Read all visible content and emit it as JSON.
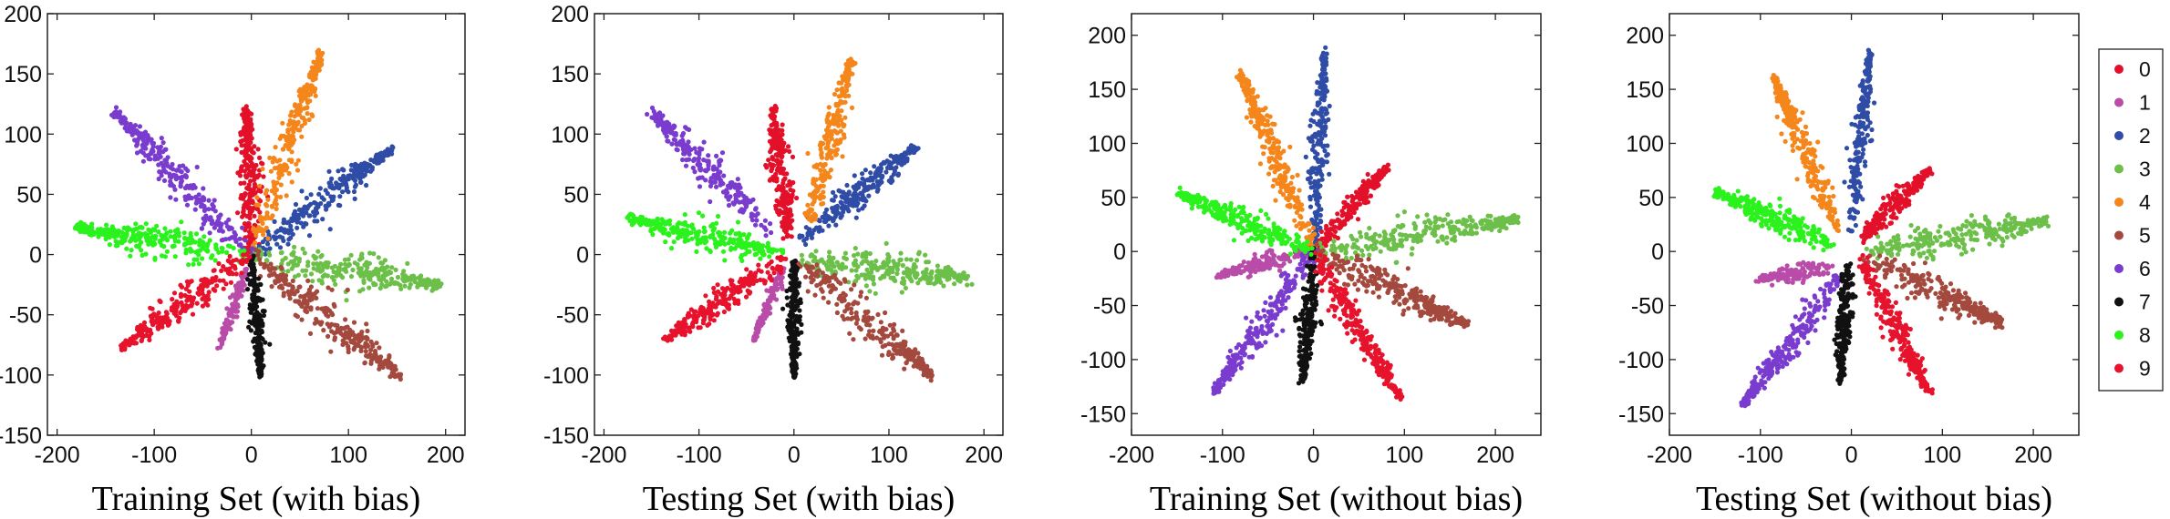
{
  "chart_data": [
    {
      "type": "scatter",
      "title": "Training Set (with bias)",
      "xlim": [
        -210,
        220
      ],
      "ylim": [
        -150,
        200
      ],
      "xticks": [
        -200,
        -100,
        0,
        100,
        200
      ],
      "yticks": [
        -150,
        -100,
        -50,
        0,
        50,
        100,
        150,
        200
      ],
      "grid": false,
      "clusters": [
        {
          "label": "0",
          "start": [
            0,
            0
          ],
          "end": [
            -5,
            120
          ],
          "width": 14,
          "n": 240
        },
        {
          "label": "1",
          "start": [
            0,
            0
          ],
          "end": [
            -32,
            -75
          ],
          "width": 7,
          "n": 140
        },
        {
          "label": "2",
          "start": [
            0,
            0
          ],
          "end": [
            145,
            88
          ],
          "width": 14,
          "n": 260
        },
        {
          "label": "3",
          "start": [
            0,
            0
          ],
          "end": [
            195,
            -25
          ],
          "width": 18,
          "n": 280
        },
        {
          "label": "4",
          "start": [
            0,
            0
          ],
          "end": [
            72,
            168
          ],
          "width": 15,
          "n": 260
        },
        {
          "label": "5",
          "start": [
            0,
            0
          ],
          "end": [
            155,
            -102
          ],
          "width": 18,
          "n": 270
        },
        {
          "label": "6",
          "start": [
            0,
            0
          ],
          "end": [
            -140,
            118
          ],
          "width": 16,
          "n": 260
        },
        {
          "label": "7",
          "start": [
            0,
            0
          ],
          "end": [
            10,
            -100
          ],
          "width": 9,
          "n": 220
        },
        {
          "label": "8",
          "start": [
            0,
            0
          ],
          "end": [
            -180,
            22
          ],
          "width": 15,
          "n": 280
        },
        {
          "label": "9",
          "start": [
            0,
            0
          ],
          "end": [
            -135,
            -78
          ],
          "width": 15,
          "n": 260
        }
      ]
    },
    {
      "type": "scatter",
      "title": "Testing Set (with bias)",
      "xlim": [
        -210,
        220
      ],
      "ylim": [
        -150,
        200
      ],
      "xticks": [
        -200,
        -100,
        0,
        100,
        200
      ],
      "yticks": [
        -150,
        -100,
        -50,
        0,
        50,
        100,
        150,
        200
      ],
      "grid": false,
      "clusters": [
        {
          "label": "0",
          "start": [
            -5,
            10
          ],
          "end": [
            -22,
            122
          ],
          "width": 14,
          "n": 230
        },
        {
          "label": "1",
          "start": [
            -10,
            -10
          ],
          "end": [
            -42,
            -70
          ],
          "width": 7,
          "n": 130
        },
        {
          "label": "2",
          "start": [
            5,
            10
          ],
          "end": [
            130,
            90
          ],
          "width": 15,
          "n": 250
        },
        {
          "label": "3",
          "start": [
            5,
            -5
          ],
          "end": [
            185,
            -20
          ],
          "width": 18,
          "n": 270
        },
        {
          "label": "4",
          "start": [
            15,
            25
          ],
          "end": [
            60,
            162
          ],
          "width": 14,
          "n": 240
        },
        {
          "label": "5",
          "start": [
            5,
            -5
          ],
          "end": [
            145,
            -100
          ],
          "width": 18,
          "n": 260
        },
        {
          "label": "6",
          "start": [
            -20,
            15
          ],
          "end": [
            -150,
            118
          ],
          "width": 16,
          "n": 250
        },
        {
          "label": "7",
          "start": [
            0,
            -5
          ],
          "end": [
            0,
            -100
          ],
          "width": 9,
          "n": 220
        },
        {
          "label": "8",
          "start": [
            -10,
            0
          ],
          "end": [
            -175,
            30
          ],
          "width": 15,
          "n": 270
        },
        {
          "label": "9",
          "start": [
            -10,
            -5
          ],
          "end": [
            -135,
            -70
          ],
          "width": 15,
          "n": 250
        }
      ]
    },
    {
      "type": "scatter",
      "title": "Training Set (without bias)",
      "xlim": [
        -200,
        250
      ],
      "ylim": [
        -170,
        220
      ],
      "xticks": [
        -200,
        -100,
        0,
        100,
        200
      ],
      "yticks": [
        -150,
        -100,
        -50,
        0,
        50,
        100,
        150,
        200
      ],
      "grid": false,
      "clusters": [
        {
          "label": "0",
          "start": [
            0,
            0
          ],
          "end": [
            80,
            78
          ],
          "width": 13,
          "n": 220
        },
        {
          "label": "1",
          "start": [
            0,
            0
          ],
          "end": [
            -105,
            -22
          ],
          "width": 10,
          "n": 170
        },
        {
          "label": "2",
          "start": [
            0,
            0
          ],
          "end": [
            12,
            185
          ],
          "width": 11,
          "n": 240
        },
        {
          "label": "3",
          "start": [
            0,
            0
          ],
          "end": [
            225,
            30
          ],
          "width": 18,
          "n": 290
        },
        {
          "label": "4",
          "start": [
            0,
            0
          ],
          "end": [
            -80,
            165
          ],
          "width": 16,
          "n": 270
        },
        {
          "label": "5",
          "start": [
            0,
            0
          ],
          "end": [
            170,
            -68
          ],
          "width": 17,
          "n": 270
        },
        {
          "label": "6",
          "start": [
            0,
            0
          ],
          "end": [
            -110,
            -130
          ],
          "width": 16,
          "n": 270
        },
        {
          "label": "7",
          "start": [
            0,
            0
          ],
          "end": [
            -12,
            -120
          ],
          "width": 11,
          "n": 240
        },
        {
          "label": "8",
          "start": [
            0,
            0
          ],
          "end": [
            -150,
            55
          ],
          "width": 14,
          "n": 260
        },
        {
          "label": "9",
          "start": [
            0,
            0
          ],
          "end": [
            95,
            -135
          ],
          "width": 15,
          "n": 260
        }
      ]
    },
    {
      "type": "scatter",
      "title": "Testing Set (without bias)",
      "xlim": [
        -200,
        250
      ],
      "ylim": [
        -170,
        220
      ],
      "xticks": [
        -200,
        -100,
        0,
        100,
        200
      ],
      "yticks": [
        -150,
        -100,
        -50,
        0,
        50,
        100,
        150,
        200
      ],
      "grid": false,
      "clusters": [
        {
          "label": "0",
          "start": [
            10,
            10
          ],
          "end": [
            85,
            75
          ],
          "width": 13,
          "n": 210
        },
        {
          "label": "1",
          "start": [
            -20,
            -15
          ],
          "end": [
            -100,
            -25
          ],
          "width": 10,
          "n": 160
        },
        {
          "label": "2",
          "start": [
            0,
            15
          ],
          "end": [
            20,
            185
          ],
          "width": 11,
          "n": 230
        },
        {
          "label": "3",
          "start": [
            15,
            0
          ],
          "end": [
            215,
            28
          ],
          "width": 18,
          "n": 280
        },
        {
          "label": "4",
          "start": [
            -15,
            20
          ],
          "end": [
            -85,
            162
          ],
          "width": 15,
          "n": 260
        },
        {
          "label": "5",
          "start": [
            10,
            -5
          ],
          "end": [
            165,
            -65
          ],
          "width": 17,
          "n": 260
        },
        {
          "label": "6",
          "start": [
            -10,
            -20
          ],
          "end": [
            -120,
            -142
          ],
          "width": 15,
          "n": 260
        },
        {
          "label": "7",
          "start": [
            -5,
            -10
          ],
          "end": [
            -12,
            -120
          ],
          "width": 11,
          "n": 230
        },
        {
          "label": "8",
          "start": [
            -15,
            5
          ],
          "end": [
            -150,
            55
          ],
          "width": 14,
          "n": 260
        },
        {
          "label": "9",
          "start": [
            10,
            -5
          ],
          "end": [
            85,
            -130
          ],
          "width": 15,
          "n": 250
        }
      ]
    }
  ],
  "legend": {
    "placement": "right",
    "items": [
      {
        "label": "0",
        "color": "#e3102a"
      },
      {
        "label": "1",
        "color": "#b84ca8"
      },
      {
        "label": "2",
        "color": "#2f4ca6"
      },
      {
        "label": "3",
        "color": "#6cc04a"
      },
      {
        "label": "4",
        "color": "#f5861b"
      },
      {
        "label": "5",
        "color": "#a4493e"
      },
      {
        "label": "6",
        "color": "#7a3ccf"
      },
      {
        "label": "7",
        "color": "#111111"
      },
      {
        "label": "8",
        "color": "#2bf21c"
      },
      {
        "label": "9",
        "color": "#e7122c"
      }
    ]
  }
}
